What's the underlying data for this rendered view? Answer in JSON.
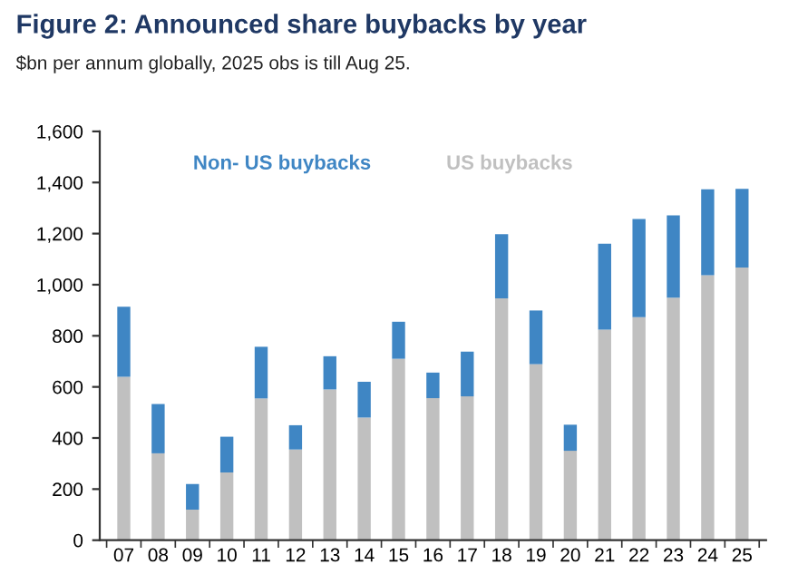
{
  "chart_data": {
    "type": "bar",
    "title": "Figure 2: Announced share buybacks by year",
    "subtitle": "$bn per annum globally, 2025 obs is till Aug 25.",
    "categories": [
      "07",
      "08",
      "09",
      "10",
      "11",
      "12",
      "13",
      "14",
      "15",
      "16",
      "17",
      "18",
      "19",
      "20",
      "21",
      "22",
      "23",
      "24",
      "25"
    ],
    "stacked": true,
    "series": [
      {
        "name": "US buybacks",
        "color": "#c0c0c0",
        "values": [
          640,
          340,
          120,
          265,
          555,
          355,
          590,
          480,
          710,
          556,
          563,
          947,
          689,
          350,
          824,
          873,
          949,
          1037,
          1067
        ]
      },
      {
        "name": "Non- US buybacks",
        "color": "#3f86c4",
        "values": [
          274,
          193,
          100,
          140,
          202,
          95,
          130,
          140,
          145,
          100,
          175,
          251,
          210,
          102,
          336,
          384,
          322,
          336,
          308
        ]
      }
    ],
    "ylim": [
      0,
      1600
    ],
    "yticks": [
      0,
      {
        "value": 200,
        "label": "200"
      },
      {
        "value": 400,
        "label": "400"
      },
      {
        "value": 600,
        "label": "600"
      },
      {
        "value": 800,
        "label": "800"
      },
      {
        "value": 1000,
        "label": "1,000"
      },
      {
        "value": 1200,
        "label": "1,200"
      },
      {
        "value": 1400,
        "label": "1,400"
      },
      {
        "value": 1600,
        "label": "1,600"
      }
    ],
    "grid": false,
    "legend": "top"
  }
}
